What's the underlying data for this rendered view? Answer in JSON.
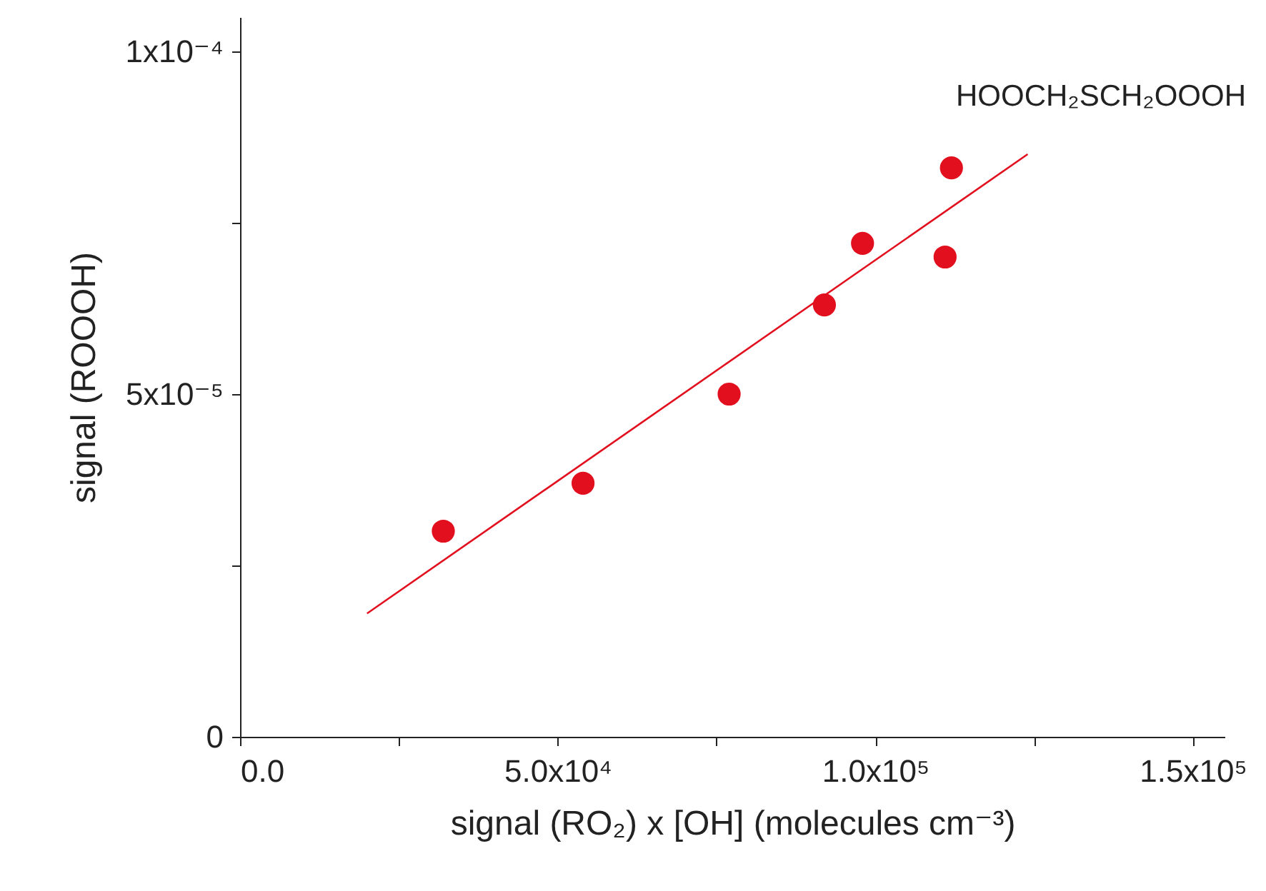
{
  "chart_data": {
    "type": "scatter",
    "xlabel": "signal (RO₂) x [OH]  (molecules cm⁻³)",
    "ylabel": "signal (ROOOH)",
    "xlim": [
      0,
      155000
    ],
    "ylim": [
      0,
      0.000105
    ],
    "xticks": [
      {
        "value": 0,
        "label": "0.0"
      },
      {
        "value": 25000,
        "label": null
      },
      {
        "value": 50000,
        "label": "5.0x10⁴"
      },
      {
        "value": 75000,
        "label": null
      },
      {
        "value": 100000,
        "label": "1.0x10⁵"
      },
      {
        "value": 125000,
        "label": null
      },
      {
        "value": 150000,
        "label": "1.5x10⁵"
      }
    ],
    "yticks": [
      {
        "value": 0,
        "label": "0"
      },
      {
        "value": 2.5e-05,
        "label": null
      },
      {
        "value": 5e-05,
        "label": "5x10⁻⁵"
      },
      {
        "value": 7.5e-05,
        "label": null
      },
      {
        "value": 0.0001,
        "label": "1x10⁻⁴"
      }
    ],
    "grid": false,
    "series": [
      {
        "color": "#e2101e",
        "marker": "circle",
        "x": [
          32000,
          54000,
          77000,
          92000,
          98000,
          111000,
          112000
        ],
        "values": [
          3e-05,
          3.7e-05,
          5e-05,
          6.3e-05,
          7.2e-05,
          7e-05,
          8.3e-05
        ]
      },
      {
        "type": "line",
        "color": "#e2101e",
        "x": [
          20000,
          124000
        ],
        "values": [
          1.8e-05,
          8.5e-05
        ]
      }
    ],
    "annotations": [
      "HOOCH₂SCH₂OOOH"
    ]
  }
}
